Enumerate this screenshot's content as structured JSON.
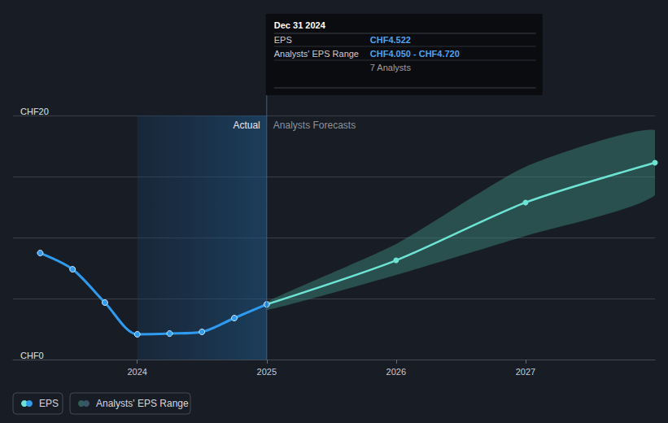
{
  "chart_data": {
    "type": "line",
    "xlim": [
      2023.04,
      2028
    ],
    "xticks": [
      2024,
      2025,
      2026,
      2027
    ],
    "ylim": [
      0,
      20
    ],
    "yticks": [
      {
        "value": 0,
        "label": "CHF0"
      },
      {
        "value": 20,
        "label": "CHF20"
      }
    ],
    "grid": true,
    "actual_region": [
      2024,
      2025
    ],
    "region_labels": [
      "Actual",
      "Analysts Forecasts"
    ],
    "series": [
      {
        "name": "EPS",
        "color": "#2f9bf0",
        "marker": "circle",
        "x": [
          2023.25,
          2023.5,
          2023.75,
          2024,
          2024.25,
          2024.5,
          2024.75,
          2025
        ],
        "values": [
          8.73,
          7.4,
          4.67,
          2.07,
          2.13,
          2.27,
          3.4,
          4.522
        ]
      },
      {
        "name": "Analysts Forecasts",
        "color": "#6de3d4",
        "marker": "circle",
        "x": [
          2025,
          2026,
          2027,
          2028
        ],
        "values": [
          4.522,
          8.13,
          12.87,
          16.13
        ]
      }
    ],
    "range": {
      "name": "Analysts' EPS Range",
      "color": "#3f8f86",
      "x": [
        2025,
        2026,
        2027,
        2028
      ],
      "low": [
        4.05,
        6.93,
        10.13,
        13.47
      ],
      "high": [
        4.72,
        9.47,
        15.8,
        18.8
      ]
    },
    "tooltip": {
      "title": "Dec 31 2024",
      "rows": [
        {
          "label": "EPS",
          "value": "CHF4.522"
        },
        {
          "label": "Analysts' EPS Range",
          "value": "CHF4.050 - CHF4.720"
        }
      ],
      "note": "7 Analysts"
    }
  }
}
